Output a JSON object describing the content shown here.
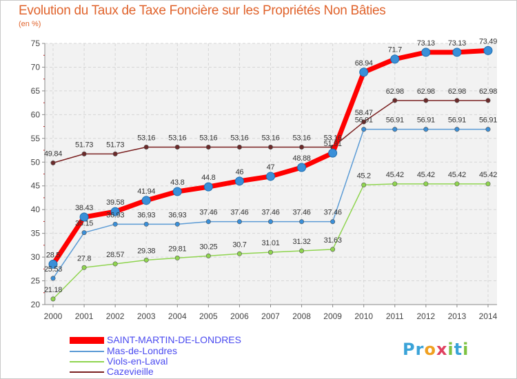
{
  "chart_data": {
    "type": "line",
    "title": "Evolution du Taux de Taxe Foncière sur les Propriétés Non Bâties",
    "subtitle": "(en %)",
    "xlabel": "",
    "ylabel": "(en %)",
    "ylim": [
      20,
      75
    ],
    "yticks": [
      20,
      25,
      30,
      35,
      40,
      45,
      50,
      55,
      60,
      65,
      70,
      75
    ],
    "categories": [
      "2000",
      "2001",
      "2002",
      "2003",
      "2004",
      "2005",
      "2006",
      "2007",
      "2008",
      "2009",
      "2010",
      "2011",
      "2012",
      "2013",
      "2014"
    ],
    "grid": true,
    "legend_position": "bottom-left",
    "series": [
      {
        "name": "SAINT-MARTIN-DE-LONDRES",
        "color": "#ff0000",
        "values": [
          28.5,
          38.43,
          39.58,
          41.94,
          43.8,
          44.8,
          46,
          47,
          48.88,
          51.91,
          68.94,
          71.7,
          73.13,
          73.13,
          73.49
        ],
        "labels": [
          "28.5",
          "38.43",
          "39.58",
          "41.94",
          "43.8",
          "44.8",
          "46",
          "47",
          "48.88",
          "51.91",
          "68.94",
          "71.7",
          "73.13",
          "73.13",
          "73.49"
        ]
      },
      {
        "name": "Mas-de-Londres",
        "color": "#5b9bd5",
        "values": [
          25.53,
          35.15,
          36.93,
          36.93,
          36.93,
          37.46,
          37.46,
          37.46,
          37.46,
          37.46,
          56.91,
          56.91,
          56.91,
          56.91,
          56.91
        ],
        "labels": [
          "25.53",
          "35.15",
          "36.93",
          "36.93",
          "36.93",
          "37.46",
          "37.46",
          "37.46",
          "37.46",
          "37.46",
          "56.91",
          "56.91",
          "56.91",
          "56.91",
          "56.91"
        ]
      },
      {
        "name": "Viols-en-Laval",
        "color": "#8fd44f",
        "values": [
          21.18,
          27.8,
          28.57,
          29.38,
          29.81,
          30.25,
          30.7,
          31.01,
          31.32,
          31.63,
          45.2,
          45.42,
          45.42,
          45.42,
          45.42
        ],
        "labels": [
          "21.18",
          "27.8",
          "28.57",
          "29.38",
          "29.81",
          "30.25",
          "30.7",
          "31.01",
          "31.32",
          "31.63",
          "45.2",
          "45.42",
          "45.42",
          "45.42",
          "45.42"
        ]
      },
      {
        "name": "Cazevieille",
        "color": "#7a2020",
        "values": [
          49.84,
          51.73,
          51.73,
          53.16,
          53.16,
          53.16,
          53.16,
          53.16,
          53.16,
          53.16,
          58.47,
          62.98,
          62.98,
          62.98,
          62.98
        ],
        "labels": [
          "49.84",
          "51.73",
          "51.73",
          "53.16",
          "53.16",
          "53.16",
          "53.16",
          "53.16",
          "53.16",
          "53.16",
          "58.47",
          "62.98",
          "62.98",
          "62.98",
          "62.98"
        ]
      }
    ]
  },
  "logo": {
    "p1": "Pr",
    "p2": "o",
    "p3": "x",
    "p4": "i",
    "p5": "t",
    "p6": "i"
  }
}
